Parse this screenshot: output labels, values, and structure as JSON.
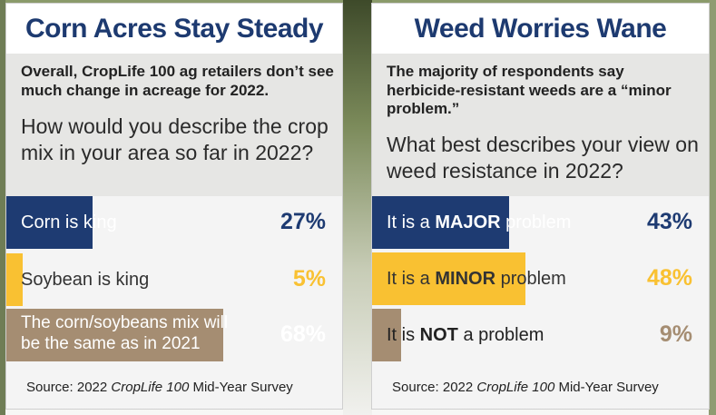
{
  "chart_data": [
    {
      "type": "bar",
      "title": "Corn Acres Stay Steady",
      "subtitle": "Overall, CropLife 100 ag retailers don’t see much change in acreage for 2022.",
      "question": "How would you describe the crop mix in your area so far in 2022?",
      "categories": [
        "Corn is king",
        "Soybean is king",
        "The corn/soybeans mix will be the same as in 2021"
      ],
      "values": [
        27,
        5,
        68
      ],
      "value_labels": [
        "27%",
        "5%",
        "68%"
      ],
      "colors": [
        "#1e3b72",
        "#f9c132",
        "#a58d72"
      ],
      "pct_colors": [
        "#1e3b72",
        "#f9c132",
        "#ffffff"
      ],
      "label_colors": [
        "#ffffff",
        "#333333",
        "#ffffff"
      ],
      "xlim": [
        0,
        100
      ],
      "source_prefix": "Source: 2022 ",
      "source_italic": "CropLife 100",
      "source_suffix": " Mid-Year Survey"
    },
    {
      "type": "bar",
      "title": "Weed Worries Wane",
      "subtitle": "The majority of respondents say herbicide-resistant weeds are a “minor problem.”",
      "question": "What best describes your view on weed resistance in 2022?",
      "categories": [
        "It is a MAJOR problem",
        "It is a MINOR problem",
        "It is NOT a problem"
      ],
      "label_parts": [
        [
          "It is a ",
          "MAJOR",
          " problem"
        ],
        [
          "It is a ",
          "MINOR",
          " problem"
        ],
        [
          "It is ",
          "NOT",
          " a problem"
        ]
      ],
      "values": [
        43,
        48,
        9
      ],
      "value_labels": [
        "43%",
        "48%",
        "9%"
      ],
      "colors": [
        "#1e3b72",
        "#f9c132",
        "#a58d72"
      ],
      "pct_colors": [
        "#1e3b72",
        "#f9c132",
        "#a58d72"
      ],
      "label_colors": [
        "#ffffff",
        "#333333",
        "#222222"
      ],
      "xlim": [
        0,
        100
      ],
      "source_prefix": "Source: 2022 ",
      "source_italic": "CropLife 100",
      "source_suffix": " Mid-Year Survey"
    }
  ]
}
